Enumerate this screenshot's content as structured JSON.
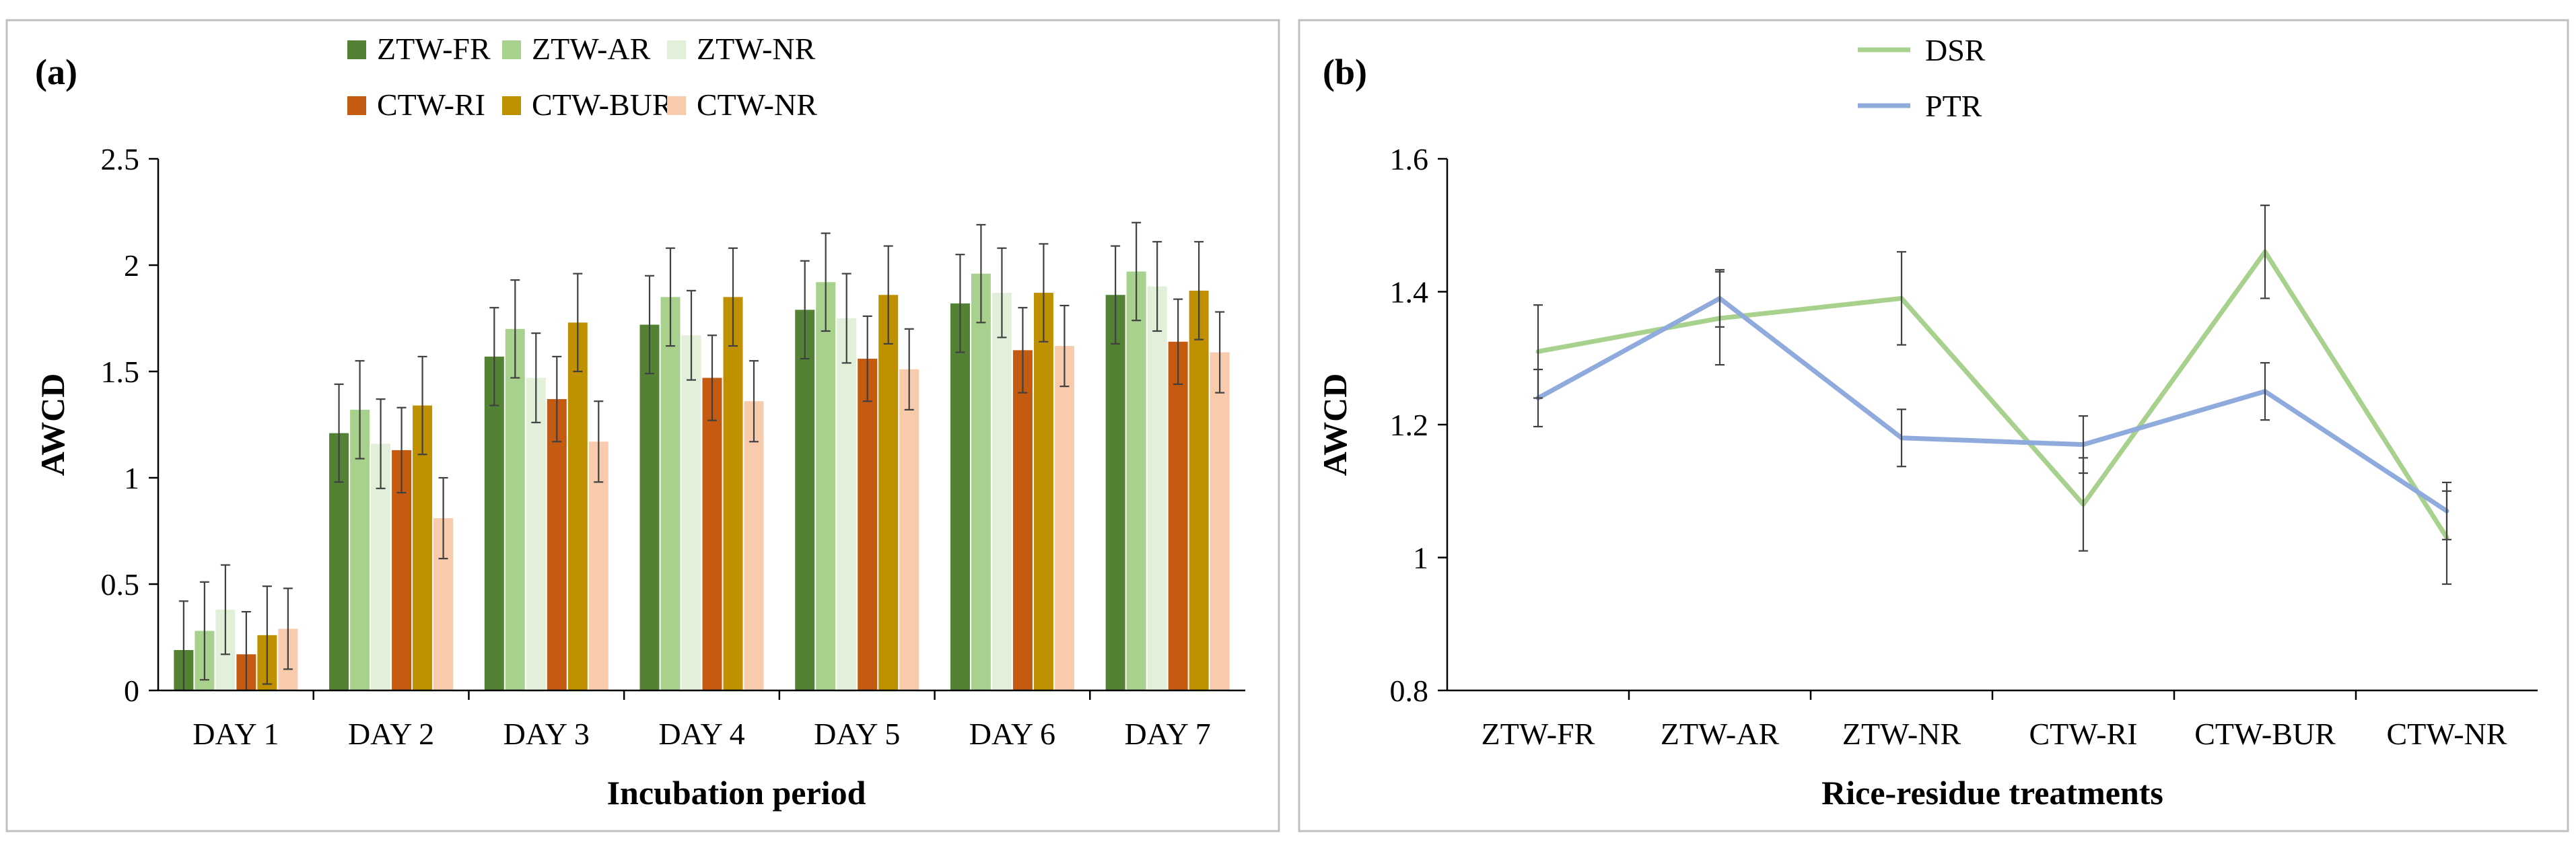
{
  "chart_data": [
    {
      "type": "bar",
      "panel_label": "(a)",
      "title": "",
      "xlabel": "Incubation period",
      "ylabel": "AWCD",
      "ylim": [
        0,
        2.5
      ],
      "yticks": [
        "0",
        "0.5",
        "1",
        "1.5",
        "2",
        "2.5"
      ],
      "legend_position": "top",
      "categories": [
        "DAY 1",
        "DAY 2",
        "DAY 3",
        "DAY 4",
        "DAY 5",
        "DAY 6",
        "DAY 7"
      ],
      "series": [
        {
          "name": "ZTW-FR",
          "color": "#548235",
          "values": [
            0.19,
            1.21,
            1.57,
            1.72,
            1.79,
            1.82,
            1.86
          ],
          "errors": [
            0.23,
            0.23,
            0.23,
            0.23,
            0.23,
            0.23,
            0.23
          ]
        },
        {
          "name": "ZTW-AR",
          "color": "#a9d18e",
          "values": [
            0.28,
            1.32,
            1.7,
            1.85,
            1.92,
            1.96,
            1.97
          ],
          "errors": [
            0.23,
            0.23,
            0.23,
            0.23,
            0.23,
            0.23,
            0.23
          ]
        },
        {
          "name": "ZTW-NR",
          "color": "#e2f0d9",
          "values": [
            0.38,
            1.16,
            1.47,
            1.67,
            1.75,
            1.87,
            1.9
          ],
          "errors": [
            0.21,
            0.21,
            0.21,
            0.21,
            0.21,
            0.21,
            0.21
          ]
        },
        {
          "name": "CTW-RI",
          "color": "#c55a11",
          "values": [
            0.17,
            1.13,
            1.37,
            1.47,
            1.56,
            1.6,
            1.64
          ],
          "errors": [
            0.2,
            0.2,
            0.2,
            0.2,
            0.2,
            0.2,
            0.2
          ]
        },
        {
          "name": "CTW-BUR",
          "color": "#bf9000",
          "values": [
            0.26,
            1.34,
            1.73,
            1.85,
            1.86,
            1.87,
            1.88
          ],
          "errors": [
            0.23,
            0.23,
            0.23,
            0.23,
            0.23,
            0.23,
            0.23
          ]
        },
        {
          "name": "CTW-NR",
          "color": "#f8cbad",
          "values": [
            0.29,
            0.81,
            1.17,
            1.36,
            1.51,
            1.62,
            1.59
          ],
          "errors": [
            0.19,
            0.19,
            0.19,
            0.19,
            0.19,
            0.19,
            0.19
          ]
        }
      ]
    },
    {
      "type": "line",
      "panel_label": "(b)",
      "title": "",
      "xlabel": "Rice-residue treatments",
      "ylabel": "AWCD",
      "ylim": [
        0.8,
        1.6
      ],
      "yticks": [
        "0.8",
        "1",
        "1.2",
        "1.4",
        "1.6"
      ],
      "legend_position": "top",
      "categories": [
        "ZTW-FR",
        "ZTW-AR",
        "ZTW-NR",
        "CTW-RI",
        "CTW-BUR",
        "CTW-NR"
      ],
      "series": [
        {
          "name": "DSR",
          "color": "#a9d18e",
          "values": [
            1.31,
            1.36,
            1.39,
            1.08,
            1.46,
            1.03
          ],
          "errors": [
            0.07,
            0.07,
            0.07,
            0.07,
            0.07,
            0.07
          ]
        },
        {
          "name": "PTR",
          "color": "#8faadc",
          "values": [
            1.24,
            1.39,
            1.18,
            1.17,
            1.25,
            1.07
          ],
          "errors": [
            0.043,
            0.043,
            0.043,
            0.043,
            0.043,
            0.043
          ]
        }
      ]
    }
  ]
}
